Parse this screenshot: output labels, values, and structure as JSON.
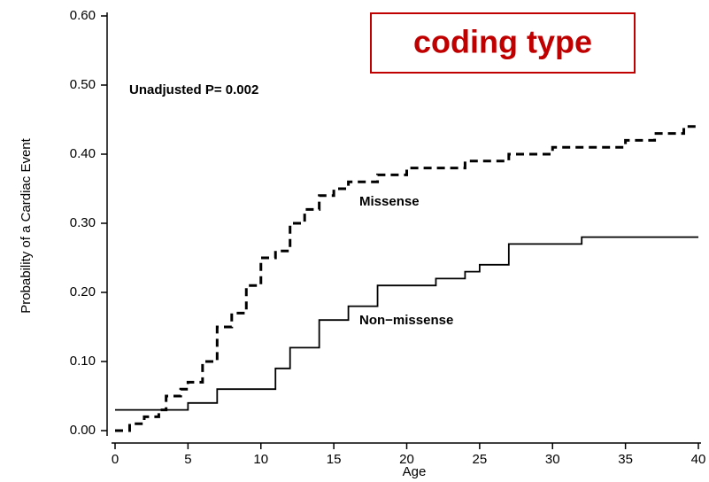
{
  "chart_data": {
    "type": "line",
    "step": true,
    "ylabel": "Probability of a Cardiac Event",
    "xlabel": "Age",
    "annotation": "Unadjusted P= 0.002",
    "banner": "coding type",
    "xlim": [
      0,
      40
    ],
    "xticks": [
      0,
      5,
      10,
      15,
      20,
      25,
      30,
      35,
      40
    ],
    "ylim": [
      0,
      0.6
    ],
    "yticks": [
      {
        "value": 0,
        "label": "0.00"
      },
      {
        "value": 0.1,
        "label": "0.10"
      },
      {
        "value": 0.2,
        "label": "0.20"
      },
      {
        "value": 0.3,
        "label": "0.30"
      },
      {
        "value": 0.4,
        "label": "0.40"
      },
      {
        "value": 0.5,
        "label": "0.50"
      },
      {
        "value": 0.6,
        "label": "0.60"
      }
    ],
    "series": [
      {
        "name": "Missense",
        "color": "#000000",
        "dashed": true,
        "x": [
          0,
          1,
          2,
          3,
          3.5,
          4.5,
          5,
          6,
          7,
          8,
          9,
          10,
          11,
          12,
          13,
          14,
          15,
          16,
          18,
          20,
          24,
          27,
          30,
          35,
          37,
          39,
          40
        ],
        "values": [
          0,
          0.01,
          0.02,
          0.03,
          0.05,
          0.06,
          0.07,
          0.1,
          0.15,
          0.17,
          0.21,
          0.25,
          0.26,
          0.3,
          0.32,
          0.34,
          0.35,
          0.36,
          0.37,
          0.38,
          0.39,
          0.4,
          0.41,
          0.42,
          0.43,
          0.44,
          0.44
        ]
      },
      {
        "name": "Non−missense",
        "color": "#000000",
        "dashed": false,
        "x": [
          0,
          5,
          7,
          11,
          12,
          14,
          16,
          18,
          22,
          24,
          25,
          27,
          32,
          40
        ],
        "values": [
          0.03,
          0.04,
          0.06,
          0.09,
          0.12,
          0.16,
          0.18,
          0.21,
          0.22,
          0.23,
          0.24,
          0.27,
          0.28,
          0.28
        ]
      }
    ]
  }
}
